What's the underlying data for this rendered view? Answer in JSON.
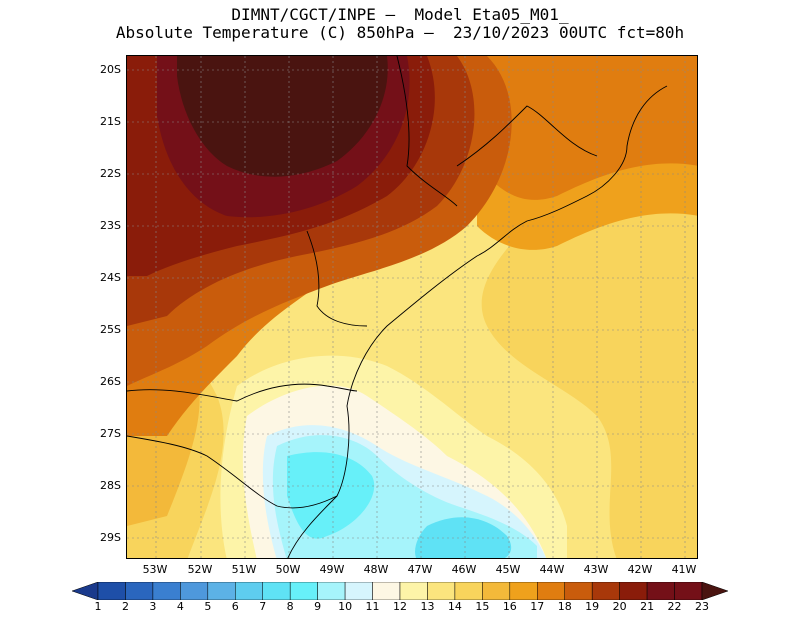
{
  "header": {
    "line1": "DIMNT/CGCT/INPE –  Model Eta05_M01_",
    "line2": "Absolute Temperature (C) 850hPa –  23/10/2023 00UTC fct=80h"
  },
  "map": {
    "variable": "Absolute Temperature",
    "units": "C",
    "level": "850hPa",
    "lat_labels": [
      "20S",
      "21S",
      "22S",
      "23S",
      "24S",
      "25S",
      "26S",
      "27S",
      "28S",
      "29S"
    ],
    "lon_labels": [
      "53W",
      "52W",
      "51W",
      "50W",
      "49W",
      "48W",
      "47W",
      "46W",
      "45W",
      "44W",
      "43W",
      "42W",
      "41W"
    ]
  },
  "colorbar": {
    "labels": [
      "1",
      "2",
      "3",
      "4",
      "5",
      "6",
      "7",
      "8",
      "9",
      "10",
      "11",
      "12",
      "13",
      "14",
      "15",
      "16",
      "17",
      "18",
      "19",
      "20",
      "21",
      "22",
      "23"
    ],
    "colors": [
      "#1a3a8c",
      "#1e4fa8",
      "#2a66be",
      "#3a7fd0",
      "#4e98dc",
      "#5cb2e6",
      "#5ecdef",
      "#5fe2f5",
      "#67f0f9",
      "#a6f4fb",
      "#d6f5fd",
      "#fdf7e4",
      "#fdf4a8",
      "#fbe57e",
      "#f8d45c",
      "#f3b93a",
      "#efa11c",
      "#e07d10",
      "#c95c0c",
      "#a8380a",
      "#8a1c0a",
      "#741018",
      "#4a1410"
    ]
  }
}
